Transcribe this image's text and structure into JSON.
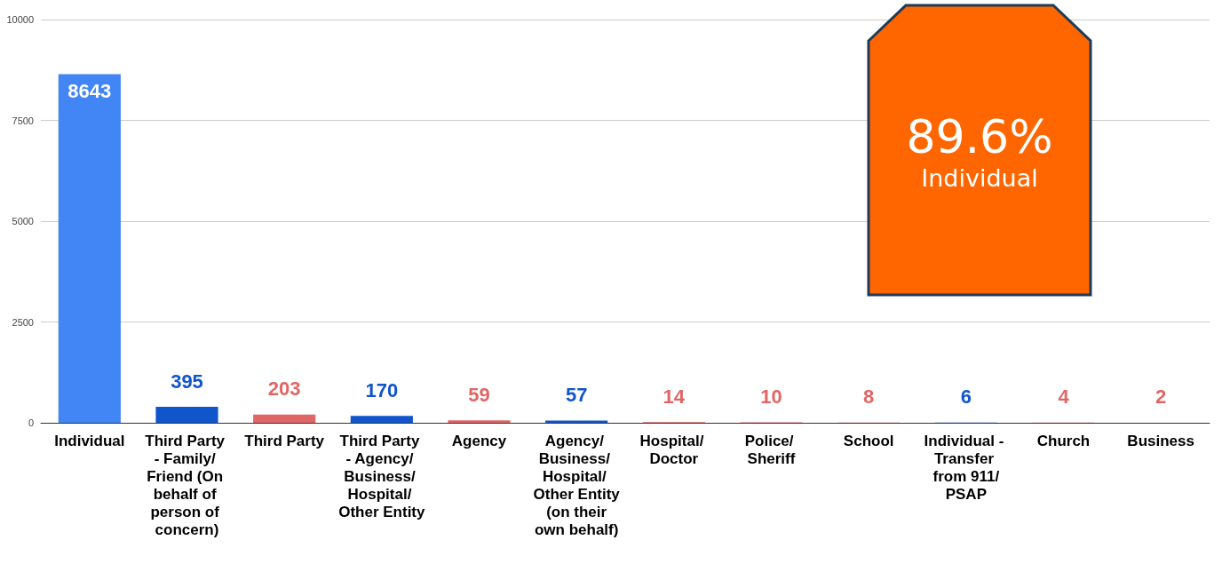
{
  "chart_data": {
    "type": "bar",
    "categories": [
      "Individual",
      "Third Party - Family/ Friend (On behalf of person of concern)",
      "Third Party",
      "Third Party - Agency/ Business/ Hospital/ Other Entity",
      "Agency",
      "Agency/ Business/ Hospital/ Other Entity (on their own behalf)",
      "Hospital/ Doctor",
      "Police/ Sheriff",
      "School",
      "Individual - Transfer from 911/PSAP",
      "Church",
      "Business"
    ],
    "values": [
      8643,
      395,
      203,
      170,
      59,
      57,
      14,
      10,
      8,
      6,
      4,
      2
    ],
    "colors": [
      "#4285f4",
      "#1155cc",
      "#e06666",
      "#1155cc",
      "#e06666",
      "#1155cc",
      "#e06666",
      "#e06666",
      "#e06666",
      "#1155cc",
      "#e06666",
      "#e06666"
    ],
    "ylim": [
      0,
      10000
    ],
    "yticks": [
      0,
      2500,
      5000,
      7500,
      10000
    ],
    "grid": "y",
    "data_labels": true,
    "annotations": [
      "89.6%",
      "Individual"
    ]
  }
}
